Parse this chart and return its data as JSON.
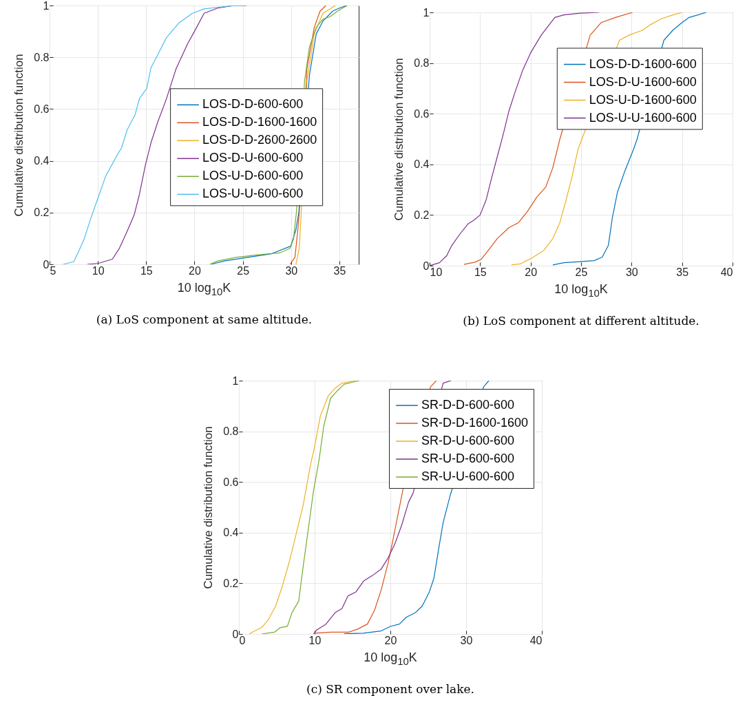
{
  "chart_data": [
    {
      "type": "line",
      "xlabel": "10 log$_{10}$K",
      "ylabel": "Cumulative distribution function",
      "annotations": [
        "(a) LoS component at same altitude."
      ],
      "xlim": [
        5,
        37
      ],
      "xticks": [
        5,
        10,
        15,
        20,
        25,
        30,
        35
      ],
      "ylim": [
        0,
        1
      ],
      "yticks": [
        0,
        0.2,
        0.4,
        0.6,
        0.8,
        1
      ],
      "grid": true,
      "legend": "right",
      "line_style": "solid",
      "series": [
        {
          "name": "LOS-D-D-600-600",
          "color": "#0072bd",
          "x": [
            21.7,
            23.1,
            25.5,
            27.9,
            29.96,
            30.5,
            30.8,
            31.9,
            32.6,
            33.3,
            34.3,
            35.0,
            35.8
          ],
          "values": [
            0,
            0.013,
            0.027,
            0.04,
            0.07,
            0.133,
            0.2,
            0.73,
            0.89,
            0.94,
            0.978,
            0.99,
            1.0
          ]
        },
        {
          "name": "LOS-D-D-1600-1600",
          "color": "#d95319",
          "x": [
            29.9,
            30.4,
            30.7,
            30.85,
            31.65,
            32.4,
            33.0,
            33.6
          ],
          "values": [
            0,
            0.027,
            0.133,
            0.2,
            0.756,
            0.916,
            0.978,
            1.0
          ]
        },
        {
          "name": "LOS-D-D-2600-2600",
          "color": "#edb120",
          "x": [
            30.5,
            30.85,
            31.05,
            31.65,
            32.4,
            33.3,
            34.6
          ],
          "values": [
            0,
            0.062,
            0.2,
            0.71,
            0.89,
            0.97,
            1.0
          ]
        },
        {
          "name": "LOS-D-U-600-600",
          "color": "#7e2f8e",
          "x": [
            8.9,
            10.07,
            11.5,
            12.2,
            13.0,
            13.75,
            14.3,
            14.9,
            15.5,
            16.2,
            17.1,
            18.1,
            19.3,
            20.0,
            21.0,
            22.4,
            24.1,
            25.4
          ],
          "values": [
            0,
            0.004,
            0.02,
            0.06,
            0.125,
            0.19,
            0.27,
            0.38,
            0.47,
            0.55,
            0.64,
            0.756,
            0.853,
            0.9,
            0.97,
            0.99,
            1.0,
            1.0
          ]
        },
        {
          "name": "LOS-U-D-600-600",
          "color": "#77ac30",
          "x": [
            21.6,
            22.4,
            24.3,
            26.45,
            28.8,
            29.9,
            30.25,
            30.55,
            31.4,
            31.9,
            32.6,
            33.3,
            34.0,
            34.8,
            35.8
          ],
          "values": [
            0,
            0.013,
            0.027,
            0.036,
            0.044,
            0.062,
            0.098,
            0.2,
            0.71,
            0.84,
            0.916,
            0.947,
            0.956,
            0.978,
            1.0
          ]
        },
        {
          "name": "LOS-U-U-600-600",
          "color": "#4dbeee",
          "x": [
            6.4,
            7.5,
            8.05,
            8.6,
            9.2,
            9.95,
            10.8,
            11.97,
            12.45,
            13.04,
            13.87,
            14.3,
            15.06,
            15.5,
            16.2,
            17.1,
            18.4,
            19.8,
            21.0,
            23.1,
            24.4
          ],
          "values": [
            0,
            0.01,
            0.053,
            0.1,
            0.17,
            0.25,
            0.34,
            0.42,
            0.45,
            0.52,
            0.58,
            0.64,
            0.68,
            0.76,
            0.81,
            0.876,
            0.933,
            0.97,
            0.987,
            0.996,
            1.0
          ]
        }
      ]
    },
    {
      "type": "line",
      "xlabel": "10 log$_{10}$K",
      "ylabel": "Cumulative distribution function",
      "annotations": [
        "(b) LoS component at different altitude."
      ],
      "xlim": [
        10,
        40
      ],
      "xticks": [
        10,
        15,
        20,
        25,
        30,
        35,
        40
      ],
      "ylim": [
        0,
        1
      ],
      "yticks": [
        0,
        0.2,
        0.4,
        0.6,
        0.8,
        1
      ],
      "grid": true,
      "legend": "right",
      "line_style": "solid",
      "series": [
        {
          "name": "LOS-D-D-1600-600",
          "color": "#0072bd",
          "x": [
            22.2,
            23.3,
            24.9,
            26.3,
            27.1,
            27.7,
            28.1,
            28.6,
            29.3,
            30.2,
            30.55,
            33.2,
            34.1,
            35.0,
            35.7,
            37.4
          ],
          "values": [
            0.003,
            0.012,
            0.016,
            0.02,
            0.034,
            0.08,
            0.19,
            0.29,
            0.37,
            0.46,
            0.5,
            0.89,
            0.93,
            0.96,
            0.98,
            1.0
          ]
        },
        {
          "name": "LOS-D-U-1600-600",
          "color": "#d95319",
          "x": [
            13.4,
            14.5,
            15.1,
            15.8,
            16.7,
            17.85,
            18.8,
            19.7,
            20.6,
            21.5,
            22.2,
            22.9,
            25.9,
            27.0,
            28.4,
            30.1
          ],
          "values": [
            0.005,
            0.014,
            0.025,
            0.06,
            0.107,
            0.15,
            0.17,
            0.215,
            0.27,
            0.31,
            0.387,
            0.5,
            0.91,
            0.96,
            0.98,
            1.0
          ]
        },
        {
          "name": "LOS-U-D-1600-600",
          "color": "#edb120",
          "x": [
            18.1,
            19.0,
            20.1,
            21.3,
            22.2,
            22.9,
            23.45,
            24.1,
            24.7,
            28.8,
            29.75,
            31.1,
            31.8,
            32.95,
            34.1,
            35.0
          ],
          "values": [
            0.003,
            0.007,
            0.03,
            0.06,
            0.107,
            0.17,
            0.25,
            0.35,
            0.46,
            0.89,
            0.91,
            0.93,
            0.95,
            0.975,
            0.99,
            1.0
          ]
        },
        {
          "name": "LOS-U-U-1600-600",
          "color": "#7e2f8e",
          "x": [
            10.0,
            10.98,
            11.7,
            12.2,
            13.0,
            13.8,
            14.4,
            15.0,
            15.6,
            16.1,
            16.7,
            17.3,
            17.85,
            18.5,
            19.2,
            20.0,
            21.05,
            22.4,
            23.3,
            24.9,
            26.8
          ],
          "values": [
            0,
            0.012,
            0.04,
            0.08,
            0.125,
            0.165,
            0.18,
            0.2,
            0.26,
            0.34,
            0.43,
            0.52,
            0.61,
            0.69,
            0.77,
            0.84,
            0.91,
            0.98,
            0.99,
            0.997,
            1.0
          ]
        }
      ]
    },
    {
      "type": "line",
      "xlabel": "10 log$_{10}$K",
      "ylabel": "Cumulative distribution function",
      "annotations": [
        "(c) SR component over lake."
      ],
      "xlim": [
        0,
        40
      ],
      "xticks": [
        0,
        10,
        20,
        30,
        40
      ],
      "ylim": [
        0,
        1
      ],
      "yticks": [
        0,
        0.2,
        0.4,
        0.6,
        0.8,
        1
      ],
      "grid": true,
      "legend": "top right",
      "line_style": "solid",
      "series": [
        {
          "name": "SR-D-D-600-600",
          "color": "#0072bd",
          "x": [
            13.9,
            16.4,
            18.8,
            20.0,
            21.2,
            22.1,
            23.3,
            24.2,
            25.15,
            25.75,
            26.4,
            26.97,
            27.9,
            32.3,
            33.0
          ],
          "values": [
            0.001,
            0.003,
            0.012,
            0.03,
            0.039,
            0.066,
            0.084,
            0.11,
            0.166,
            0.22,
            0.34,
            0.44,
            0.547,
            0.975,
            1.0
          ]
        },
        {
          "name": "SR-D-D-1600-1600",
          "color": "#d95319",
          "x": [
            10.0,
            12.1,
            14.5,
            15.75,
            16.97,
            17.9,
            18.8,
            19.7,
            20.3,
            20.9,
            21.7,
            25.3,
            26.06
          ],
          "values": [
            0.003,
            0.007,
            0.007,
            0.02,
            0.039,
            0.093,
            0.175,
            0.28,
            0.365,
            0.456,
            0.575,
            0.975,
            1.0
          ]
        },
        {
          "name": "SR-D-U-600-600",
          "color": "#edb120",
          "x": [
            1.36,
            2.1,
            3.0,
            3.9,
            4.85,
            5.75,
            6.7,
            7.6,
            8.5,
            9.4,
            10.0,
            10.75,
            11.8,
            12.7,
            13.6,
            15.45
          ],
          "values": [
            0,
            0.012,
            0.025,
            0.057,
            0.11,
            0.19,
            0.29,
            0.4,
            0.51,
            0.66,
            0.74,
            0.86,
            0.94,
            0.97,
            0.99,
            1.0
          ]
        },
        {
          "name": "SR-U-D-600-600",
          "color": "#7e2f8e",
          "x": [
            9.85,
            10.3,
            11.5,
            12.7,
            13.6,
            14.4,
            15.45,
            16.5,
            17.6,
            18.8,
            19.7,
            20.6,
            21.5,
            22.4,
            23.0,
            26.97,
            28.0
          ],
          "values": [
            0,
            0.016,
            0.039,
            0.084,
            0.1,
            0.15,
            0.166,
            0.21,
            0.23,
            0.257,
            0.3,
            0.356,
            0.43,
            0.52,
            0.556,
            0.99,
            1.0
          ]
        },
        {
          "name": "SR-U-U-600-600",
          "color": "#77ac30",
          "x": [
            3.0,
            4.7,
            5.45,
            6.4,
            7.0,
            7.9,
            8.5,
            9.1,
            9.85,
            10.6,
            11.2,
            12.1,
            13.0,
            13.9,
            15.9
          ],
          "values": [
            0,
            0.007,
            0.025,
            0.03,
            0.084,
            0.13,
            0.27,
            0.4,
            0.565,
            0.69,
            0.82,
            0.93,
            0.96,
            0.986,
            1.0
          ]
        }
      ]
    }
  ]
}
